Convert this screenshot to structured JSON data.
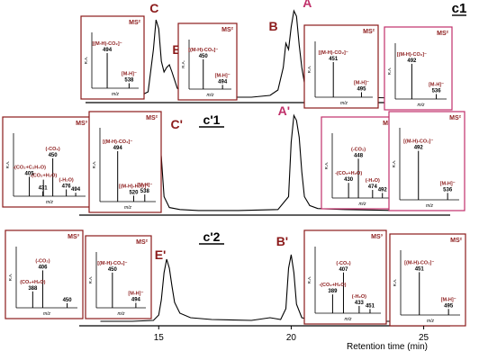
{
  "chart_data": {
    "type": "line",
    "xlabel": "Retention time (min)",
    "x_ticks": [
      "15",
      "20",
      "25"
    ],
    "xlim": [
      12,
      26
    ],
    "colors": {
      "trace": "#000000",
      "maroon": "#8B1A1A",
      "pink": "#C0306A"
    },
    "panels": [
      {
        "id": "c1",
        "title": "c1",
        "peak_labels": [
          {
            "text": "C",
            "rt": 14.9
          },
          {
            "text": "E",
            "rt": 15.4
          },
          {
            "text": "B",
            "rt": 19.8
          },
          {
            "text": "A",
            "rt": 20.2
          }
        ],
        "trace": {
          "x": [
            12.8,
            13.5,
            14.2,
            14.6,
            14.8,
            14.9,
            15.0,
            15.1,
            15.2,
            15.3,
            15.4,
            15.5,
            15.7,
            16.0,
            16.5,
            17.5,
            18.5,
            19.2,
            19.5,
            19.7,
            19.8,
            19.9,
            20.0,
            20.1,
            20.2,
            20.3,
            20.4,
            20.5,
            20.7,
            21.0,
            21.5,
            22.5,
            24.0,
            25.5
          ],
          "y": [
            0.01,
            0.01,
            0.02,
            0.08,
            0.55,
            0.88,
            0.78,
            0.42,
            0.3,
            0.35,
            0.38,
            0.3,
            0.12,
            0.05,
            0.03,
            0.02,
            0.02,
            0.04,
            0.1,
            0.35,
            0.62,
            0.55,
            0.8,
            0.98,
            0.92,
            0.6,
            0.35,
            0.18,
            0.08,
            0.04,
            0.03,
            0.02,
            0.01,
            0.01
          ]
        },
        "insets": [
          {
            "id": "C",
            "border": "maroon",
            "ms_label": "MS²",
            "peaks": [
              {
                "label": "[(M-H)-CO₂]⁻",
                "value": "494",
                "mz": 494,
                "ri": 0.85
              },
              {
                "label": "[M-H]⁻",
                "value": "538",
                "mz": 538,
                "ri": 0.12
              }
            ]
          },
          {
            "id": "E",
            "border": "maroon",
            "ms_label": "MS²",
            "peaks": [
              {
                "label": "[(M-H)-CO₂]⁻",
                "value": "450",
                "mz": 450,
                "ri": 0.85
              },
              {
                "label": "[M-H]⁻",
                "value": "494",
                "mz": 494,
                "ri": 0.12
              }
            ]
          },
          {
            "id": "B",
            "border": "maroon",
            "ms_label": "MS²",
            "peaks": [
              {
                "label": "[(M-H)-CO₂]⁻",
                "value": "451",
                "mz": 451,
                "ri": 0.85
              },
              {
                "label": "[M-H]⁻",
                "value": "495",
                "mz": 495,
                "ri": 0.12
              }
            ]
          },
          {
            "id": "A",
            "border": "pink",
            "ms_label": "MS²",
            "peaks": [
              {
                "label": "[(M-H)-CO₂]⁻",
                "value": "492",
                "mz": 492,
                "ri": 0.85
              },
              {
                "label": "[M-H]⁻",
                "value": "536",
                "mz": 536,
                "ri": 0.12
              }
            ]
          }
        ]
      },
      {
        "id": "c1p",
        "title": "c'1",
        "peak_labels": [
          {
            "text": "C'",
            "rt": 15.0
          },
          {
            "text": "A'",
            "rt": 20.2
          }
        ],
        "trace": {
          "x": [
            12.8,
            14.0,
            14.6,
            14.8,
            14.9,
            15.0,
            15.1,
            15.2,
            15.4,
            15.8,
            16.5,
            18.0,
            19.5,
            19.9,
            20.0,
            20.1,
            20.2,
            20.3,
            20.4,
            20.5,
            20.7,
            21.0,
            22.0,
            24.0,
            25.5
          ],
          "y": [
            0.01,
            0.01,
            0.03,
            0.25,
            0.65,
            0.78,
            0.55,
            0.15,
            0.04,
            0.02,
            0.01,
            0.01,
            0.02,
            0.15,
            0.7,
            0.97,
            0.92,
            0.75,
            0.4,
            0.15,
            0.06,
            0.03,
            0.02,
            0.01,
            0.01
          ]
        },
        "insets": [
          {
            "id": "C'-MS3",
            "border": "maroon",
            "ms_label": "MS³",
            "peaks": [
              {
                "label": "(-CO₂)",
                "value": "450",
                "mz": 450,
                "ri": 0.78
              },
              {
                "label": "-(CO₂+H₂O)",
                "value": "",
                "mz": 432,
                "ri": 0.34
              },
              {
                "label": "-(CO₂+C₂H₄O)",
                "value": "405",
                "mz": 405,
                "ri": 0.4
              },
              {
                "label": "",
                "value": "431",
                "mz": 431,
                "ri": 0.1
              },
              {
                "label": "(-H₂O)",
                "value": "476",
                "mz": 476,
                "ri": 0.14
              },
              {
                "label": "",
                "value": "494",
                "mz": 494,
                "ri": 0.07
              }
            ]
          },
          {
            "id": "C'-MS2",
            "border": "maroon",
            "ms_label": "MS²",
            "peaks": [
              {
                "label": "[(M-H)-CO₂]⁻",
                "value": "494",
                "mz": 494,
                "ri": 0.85
              },
              {
                "label": "[(M-H)-H₂O]⁻",
                "value": "520",
                "mz": 520,
                "ri": 0.1
              },
              {
                "label": "[M-H]⁻",
                "value": "538",
                "mz": 538,
                "ri": 0.12
              }
            ]
          },
          {
            "id": "A'-MS3",
            "border": "pink",
            "ms_label": "MS³",
            "peaks": [
              {
                "label": "(-CO₂)",
                "value": "448",
                "mz": 448,
                "ri": 0.78
              },
              {
                "label": "-(CO₂+H₂O)",
                "value": "430",
                "mz": 430,
                "ri": 0.3
              },
              {
                "label": "(-H₂O)",
                "value": "474",
                "mz": 474,
                "ri": 0.16
              },
              {
                "label": "",
                "value": "492",
                "mz": 492,
                "ri": 0.1
              }
            ]
          },
          {
            "id": "A'-MS2",
            "border": "pink",
            "ms_label": "MS²",
            "peaks": [
              {
                "label": "[(M-H)-CO₂]⁻",
                "value": "492",
                "mz": 492,
                "ri": 0.85
              },
              {
                "label": "[M-H]⁻",
                "value": "536",
                "mz": 536,
                "ri": 0.12
              }
            ]
          }
        ]
      },
      {
        "id": "c2p",
        "title": "c'2",
        "peak_labels": [
          {
            "text": "E'",
            "rt": 15.4
          },
          {
            "text": "B'",
            "rt": 20.0
          }
        ],
        "trace": {
          "x": [
            12.8,
            14.0,
            14.8,
            15.0,
            15.1,
            15.2,
            15.3,
            15.4,
            15.5,
            15.6,
            15.8,
            16.2,
            17.0,
            18.5,
            19.2,
            19.4,
            19.6,
            19.8,
            19.9,
            20.0,
            20.1,
            20.2,
            20.4,
            20.7,
            21.5,
            23.0,
            25.5
          ],
          "y": [
            0.01,
            0.01,
            0.02,
            0.08,
            0.25,
            0.55,
            0.7,
            0.6,
            0.4,
            0.22,
            0.1,
            0.05,
            0.03,
            0.02,
            0.05,
            0.04,
            0.03,
            0.15,
            0.6,
            0.75,
            0.55,
            0.2,
            0.05,
            0.03,
            0.02,
            0.01,
            0.01
          ]
        },
        "insets": [
          {
            "id": "E'-MS3",
            "border": "maroon",
            "ms_label": "MS³",
            "peaks": [
              {
                "label": "(-CO₂)",
                "value": "406",
                "mz": 406,
                "ri": 0.8
              },
              {
                "label": "(CO₂+H₂O)",
                "value": "388",
                "mz": 388,
                "ri": 0.35
              },
              {
                "label": "",
                "value": "450",
                "mz": 450,
                "ri": 0.1
              }
            ]
          },
          {
            "id": "E'-MS2",
            "border": "maroon",
            "ms_label": "MS²",
            "peaks": [
              {
                "label": "[(M-H)-CO₂]⁻",
                "value": "450",
                "mz": 450,
                "ri": 0.85
              },
              {
                "label": "[M-H]⁻",
                "value": "494",
                "mz": 494,
                "ri": 0.12
              }
            ]
          },
          {
            "id": "B'-MS3",
            "border": "maroon",
            "ms_label": "MS³",
            "peaks": [
              {
                "label": "(-CO₂)",
                "value": "407",
                "mz": 407,
                "ri": 0.78
              },
              {
                "label": "-(CO₂+H₂O)",
                "value": "389",
                "mz": 389,
                "ri": 0.36
              },
              {
                "label": "(-H₂O)",
                "value": "433",
                "mz": 433,
                "ri": 0.14
              },
              {
                "label": "",
                "value": "451",
                "mz": 451,
                "ri": 0.08
              }
            ]
          },
          {
            "id": "B'-MS2",
            "border": "maroon",
            "ms_label": "MS²",
            "peaks": [
              {
                "label": "[(M-H)-CO₂]⁻",
                "value": "451",
                "mz": 451,
                "ri": 0.85
              },
              {
                "label": "[M-H]⁻",
                "value": "495",
                "mz": 495,
                "ri": 0.12
              }
            ]
          }
        ]
      }
    ],
    "inset_axes": {
      "ylabel": "R.A.",
      "xlabel": "m/z"
    }
  }
}
